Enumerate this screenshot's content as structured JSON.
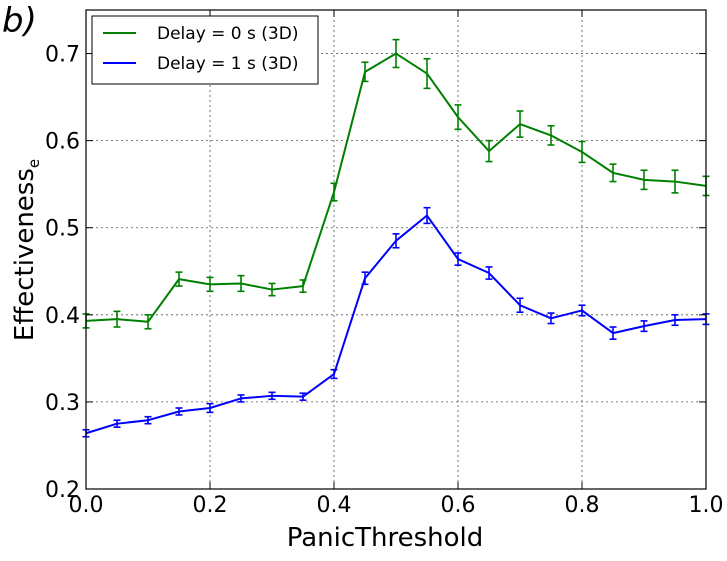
{
  "chart_data": {
    "type": "line",
    "panel_label": "b)",
    "xlabel": "PanicThreshold",
    "ylabel": "Effectiveness",
    "ylabel_subscript": "e",
    "xlim": [
      0.0,
      1.0
    ],
    "ylim": [
      0.2,
      0.75
    ],
    "xticks": [
      "0.0",
      "0.2",
      "0.4",
      "0.6",
      "0.8",
      "1.0"
    ],
    "yticks": [
      "0.2",
      "0.3",
      "0.4",
      "0.5",
      "0.6",
      "0.7"
    ],
    "grid": true,
    "legend_position": "top-left",
    "x": [
      0.0,
      0.05,
      0.1,
      0.15,
      0.2,
      0.25,
      0.3,
      0.35,
      0.4,
      0.45,
      0.5,
      0.55,
      0.6,
      0.65,
      0.7,
      0.75,
      0.8,
      0.85,
      0.9,
      0.95,
      1.0
    ],
    "series": [
      {
        "name": "Delay = 0 s (3D)",
        "color": "#008000",
        "values": [
          0.393,
          0.395,
          0.392,
          0.441,
          0.435,
          0.436,
          0.429,
          0.433,
          0.541,
          0.679,
          0.7,
          0.677,
          0.627,
          0.588,
          0.619,
          0.606,
          0.587,
          0.563,
          0.555,
          0.553,
          0.548
        ],
        "errors": [
          0.008,
          0.009,
          0.008,
          0.008,
          0.008,
          0.009,
          0.007,
          0.007,
          0.01,
          0.011,
          0.016,
          0.017,
          0.014,
          0.012,
          0.015,
          0.011,
          0.012,
          0.01,
          0.011,
          0.013,
          0.011
        ]
      },
      {
        "name": "Delay = 1 s (3D)",
        "color": "#0000ff",
        "values": [
          0.264,
          0.275,
          0.279,
          0.289,
          0.293,
          0.304,
          0.307,
          0.306,
          0.332,
          0.442,
          0.485,
          0.514,
          0.464,
          0.448,
          0.411,
          0.396,
          0.405,
          0.379,
          0.387,
          0.394,
          0.395
        ],
        "errors": [
          0.004,
          0.004,
          0.004,
          0.004,
          0.005,
          0.004,
          0.004,
          0.004,
          0.005,
          0.007,
          0.008,
          0.009,
          0.007,
          0.007,
          0.008,
          0.006,
          0.006,
          0.007,
          0.006,
          0.006,
          0.006
        ]
      }
    ]
  }
}
